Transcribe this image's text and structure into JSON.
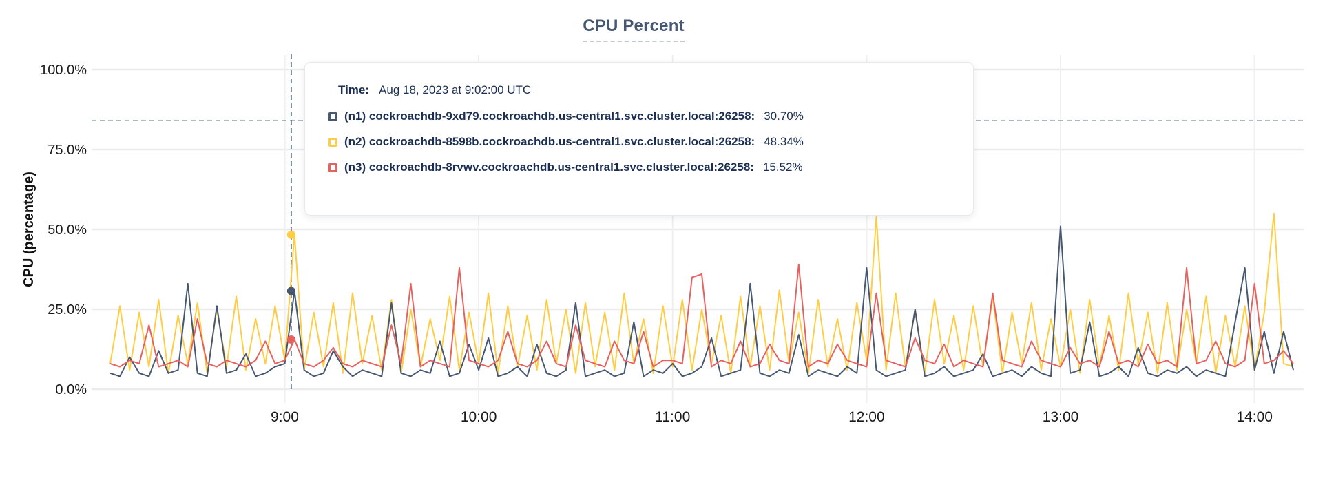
{
  "page": {
    "title": "CPU Percent"
  },
  "tooltip": {
    "time_label": "Time:",
    "time_value": "Aug 18, 2023 at 9:02:00 UTC",
    "rows": [
      {
        "name": "(n1) cockroachdb-9xd79.cockroachdb.us-central1.svc.cluster.local:26258:",
        "value": "30.70%",
        "color": "#475872"
      },
      {
        "name": "(n2) cockroachdb-8598b.cockroachdb.us-central1.svc.cluster.local:26258:",
        "value": "48.34%",
        "color": "#ffcd44"
      },
      {
        "name": "(n3) cockroachdb-8rvwv.cockroachdb.us-central1.svc.cluster.local:26258:",
        "value": "15.52%",
        "color": "#e5625f"
      }
    ]
  },
  "chart_data": {
    "type": "line",
    "title": "CPU Percent",
    "xlabel": "",
    "ylabel": "CPU (percentage)",
    "ylim": [
      0,
      100
    ],
    "grid": true,
    "legend_position": "tooltip-overlay",
    "colors": {
      "gridline": "#ebebed",
      "crosshair": "#5a7384",
      "tick_text": "#1a1a1a",
      "accent_slate": "#475872"
    },
    "y_ticks": [
      {
        "label": "100.0%",
        "value": 100
      },
      {
        "label": "75.0%",
        "value": 75
      },
      {
        "label": "50.0%",
        "value": 50
      },
      {
        "label": "25.0%",
        "value": 25
      },
      {
        "label": "0.0%",
        "value": 0
      }
    ],
    "x_ticks": [
      {
        "label": "9:00",
        "minute": 540
      },
      {
        "label": "10:00",
        "minute": 600
      },
      {
        "label": "11:00",
        "minute": 660
      },
      {
        "label": "12:00",
        "minute": 720
      },
      {
        "label": "13:00",
        "minute": 780
      },
      {
        "label": "14:00",
        "minute": 840
      }
    ],
    "x_start_minute": 486,
    "x_step_minutes": 3,
    "x_end_minute": 852,
    "crosshair": {
      "minute": 542,
      "time_label": "Aug 18, 2023 at 9:02:00 UTC",
      "hline_percent": 84,
      "values": {
        "n1": 30.7,
        "n2": 48.34,
        "n3": 15.52
      }
    },
    "series": [
      {
        "id": "n2",
        "name": "(n2) cockroachdb-8598b.cockroachdb.us-central1.svc.cluster.local:26258",
        "color": "#ffcd44",
        "values": [
          8,
          26,
          6,
          24,
          7,
          28,
          5,
          23,
          8,
          27,
          5,
          25,
          7,
          29,
          6,
          22,
          8,
          26,
          9,
          48.34,
          6,
          24,
          7,
          27,
          5,
          30,
          8,
          23,
          6,
          28,
          5,
          25,
          7,
          22,
          9,
          29,
          6,
          24,
          8,
          30,
          5,
          26,
          7,
          23,
          6,
          28,
          8,
          25,
          5,
          27,
          7,
          24,
          6,
          30,
          8,
          22,
          5,
          26,
          7,
          28,
          6,
          25,
          8,
          23,
          5,
          29,
          7,
          26,
          6,
          31,
          8,
          24,
          5,
          28,
          7,
          22,
          6,
          27,
          9,
          54,
          6,
          30,
          7,
          25,
          5,
          28,
          8,
          23,
          6,
          26,
          7,
          29,
          5,
          24,
          8,
          27,
          6,
          22,
          7,
          25,
          5,
          28,
          7,
          23,
          6,
          30,
          8,
          24,
          5,
          27,
          6,
          25,
          8,
          29,
          5,
          23,
          7,
          26,
          6,
          24,
          55,
          8,
          7
        ]
      },
      {
        "id": "n1",
        "name": "(n1) cockroachdb-9xd79.cockroachdb.us-central1.svc.cluster.local:26258",
        "color": "#475872",
        "values": [
          5,
          4,
          10,
          5,
          4,
          12,
          5,
          6,
          33,
          5,
          4,
          26,
          5,
          6,
          11,
          4,
          5,
          7,
          8,
          30.7,
          6,
          4,
          5,
          12,
          7,
          4,
          6,
          5,
          4,
          27,
          5,
          4,
          6,
          5,
          15,
          4,
          5,
          14,
          6,
          16,
          4,
          5,
          7,
          4,
          14,
          5,
          4,
          6,
          27,
          4,
          5,
          6,
          4,
          5,
          21,
          4,
          6,
          5,
          8,
          4,
          5,
          7,
          16,
          4,
          5,
          6,
          33,
          5,
          4,
          6,
          5,
          17,
          4,
          6,
          5,
          4,
          7,
          5,
          38,
          6,
          4,
          5,
          6,
          25,
          4,
          5,
          7,
          4,
          5,
          6,
          11,
          4,
          5,
          6,
          4,
          7,
          5,
          4,
          51,
          5,
          6,
          21,
          4,
          5,
          7,
          4,
          13,
          5,
          4,
          6,
          5,
          7,
          4,
          6,
          5,
          4,
          21,
          38,
          6,
          18,
          5,
          18,
          6
        ]
      },
      {
        "id": "n3",
        "name": "(n3) cockroachdb-8rvwv.cockroachdb.us-central1.svc.cluster.local:26258",
        "color": "#e5625f",
        "values": [
          8,
          7,
          9,
          8,
          20,
          7,
          8,
          9,
          7,
          22,
          8,
          7,
          9,
          8,
          7,
          9,
          15,
          8,
          9,
          15.52,
          8,
          7,
          9,
          13,
          8,
          7,
          9,
          8,
          7,
          20,
          8,
          33,
          7,
          9,
          8,
          7,
          38,
          9,
          8,
          7,
          9,
          18,
          8,
          7,
          9,
          15,
          8,
          7,
          20,
          9,
          8,
          7,
          15,
          9,
          8,
          18,
          7,
          9,
          9,
          8,
          35,
          36,
          7,
          9,
          8,
          15,
          7,
          8,
          14,
          9,
          8,
          39,
          7,
          9,
          8,
          14,
          9,
          8,
          7,
          30,
          9,
          8,
          7,
          16,
          9,
          8,
          14,
          7,
          9,
          8,
          7,
          30,
          9,
          8,
          7,
          15,
          9,
          8,
          7,
          13,
          8,
          9,
          7,
          18,
          8,
          9,
          7,
          14,
          8,
          9,
          7,
          38,
          8,
          9,
          15,
          8,
          7,
          9,
          33,
          8,
          9,
          12,
          8
        ]
      }
    ]
  }
}
